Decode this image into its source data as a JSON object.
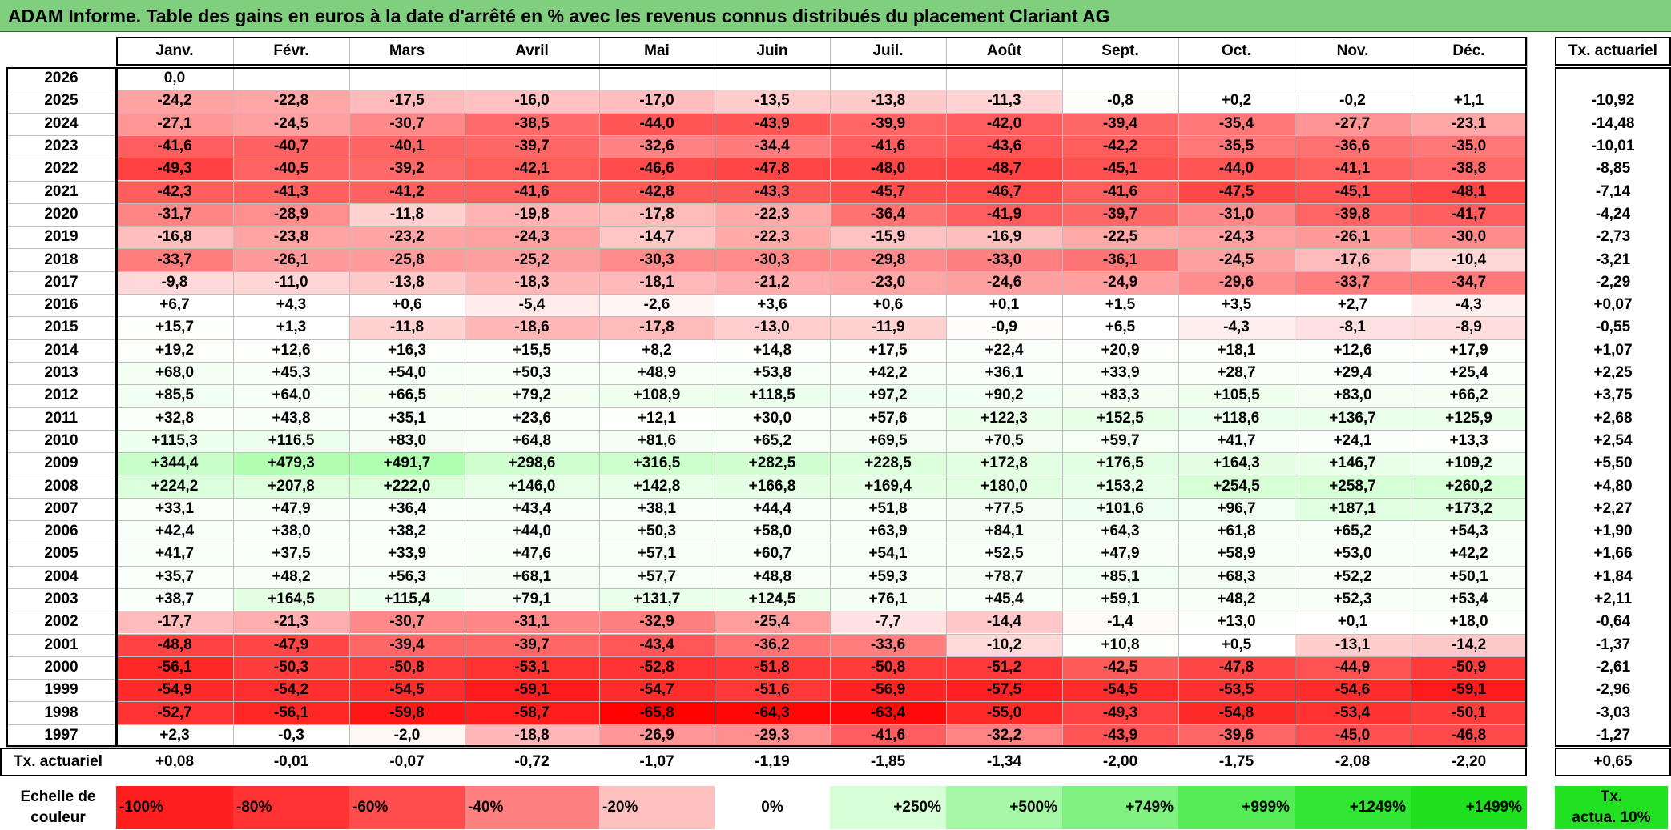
{
  "title": "ADAM Informe. Table des gains en euros à la date d'arrêté en % avec les revenus connus distribués du placement Clariant AG",
  "months": [
    "Janv.",
    "Févr.",
    "Mars",
    "Avril",
    "Mai",
    "Juin",
    "Juil.",
    "Août",
    "Sept.",
    "Oct.",
    "Nov.",
    "Déc."
  ],
  "rate_header": "Tx. actuariel",
  "rows": [
    {
      "year": "2026",
      "values": [
        "0,0",
        "",
        "",
        "",
        "",
        "",
        "",
        "",
        "",
        "",
        "",
        ""
      ],
      "rate": ""
    },
    {
      "year": "2025",
      "values": [
        "-24,2",
        "-22,8",
        "-17,5",
        "-16,0",
        "-17,0",
        "-13,5",
        "-13,8",
        "-11,3",
        "-0,8",
        "+0,2",
        "-0,2",
        "+1,1"
      ],
      "rate": "-10,92"
    },
    {
      "year": "2024",
      "values": [
        "-27,1",
        "-24,5",
        "-30,7",
        "-38,5",
        "-44,0",
        "-43,9",
        "-39,9",
        "-42,0",
        "-39,4",
        "-35,4",
        "-27,7",
        "-23,1"
      ],
      "rate": "-14,48"
    },
    {
      "year": "2023",
      "values": [
        "-41,6",
        "-40,7",
        "-40,1",
        "-39,7",
        "-32,6",
        "-34,4",
        "-41,6",
        "-43,6",
        "-42,2",
        "-35,5",
        "-36,6",
        "-35,0"
      ],
      "rate": "-10,01"
    },
    {
      "year": "2022",
      "values": [
        "-49,3",
        "-40,5",
        "-39,2",
        "-42,1",
        "-46,6",
        "-47,8",
        "-48,0",
        "-48,7",
        "-45,1",
        "-44,0",
        "-41,1",
        "-38,8"
      ],
      "rate": "-8,85"
    },
    {
      "year": "2021",
      "values": [
        "-42,3",
        "-41,3",
        "-41,2",
        "-41,6",
        "-42,8",
        "-43,3",
        "-45,7",
        "-46,7",
        "-41,6",
        "-47,5",
        "-45,1",
        "-48,1"
      ],
      "rate": "-7,14"
    },
    {
      "year": "2020",
      "values": [
        "-31,7",
        "-28,9",
        "-11,8",
        "-19,8",
        "-17,8",
        "-22,3",
        "-36,4",
        "-41,9",
        "-39,7",
        "-31,0",
        "-39,8",
        "-41,7"
      ],
      "rate": "-4,24"
    },
    {
      "year": "2019",
      "values": [
        "-16,8",
        "-23,8",
        "-23,2",
        "-24,3",
        "-14,7",
        "-22,3",
        "-15,9",
        "-16,9",
        "-22,5",
        "-24,3",
        "-26,1",
        "-30,0"
      ],
      "rate": "-2,73"
    },
    {
      "year": "2018",
      "values": [
        "-33,7",
        "-26,1",
        "-25,8",
        "-25,2",
        "-30,3",
        "-30,3",
        "-29,8",
        "-33,0",
        "-36,1",
        "-24,5",
        "-17,6",
        "-10,4"
      ],
      "rate": "-3,21"
    },
    {
      "year": "2017",
      "values": [
        "-9,8",
        "-11,0",
        "-13,8",
        "-18,3",
        "-18,1",
        "-21,2",
        "-23,0",
        "-24,6",
        "-24,9",
        "-29,6",
        "-33,7",
        "-34,7"
      ],
      "rate": "-2,29"
    },
    {
      "year": "2016",
      "values": [
        "+6,7",
        "+4,3",
        "+0,6",
        "-5,4",
        "-2,6",
        "+3,6",
        "+0,6",
        "+0,1",
        "+1,5",
        "+3,5",
        "+2,7",
        "-4,3"
      ],
      "rate": "+0,07"
    },
    {
      "year": "2015",
      "values": [
        "+15,7",
        "+1,3",
        "-11,8",
        "-18,6",
        "-17,8",
        "-13,0",
        "-11,9",
        "-0,9",
        "+6,5",
        "-4,3",
        "-8,1",
        "-8,9"
      ],
      "rate": "-0,55"
    },
    {
      "year": "2014",
      "values": [
        "+19,2",
        "+12,6",
        "+16,3",
        "+15,5",
        "+8,2",
        "+14,8",
        "+17,5",
        "+22,4",
        "+20,9",
        "+18,1",
        "+12,6",
        "+17,9"
      ],
      "rate": "+1,07"
    },
    {
      "year": "2013",
      "values": [
        "+68,0",
        "+45,3",
        "+54,0",
        "+50,3",
        "+48,9",
        "+53,8",
        "+42,2",
        "+36,1",
        "+33,9",
        "+28,7",
        "+29,4",
        "+25,4"
      ],
      "rate": "+2,25"
    },
    {
      "year": "2012",
      "values": [
        "+85,5",
        "+64,0",
        "+66,5",
        "+79,2",
        "+108,9",
        "+118,5",
        "+97,2",
        "+90,2",
        "+83,3",
        "+105,5",
        "+83,0",
        "+66,2"
      ],
      "rate": "+3,75"
    },
    {
      "year": "2011",
      "values": [
        "+32,8",
        "+43,8",
        "+35,1",
        "+23,6",
        "+12,1",
        "+30,0",
        "+57,6",
        "+122,3",
        "+152,5",
        "+118,6",
        "+136,7",
        "+125,9"
      ],
      "rate": "+2,68"
    },
    {
      "year": "2010",
      "values": [
        "+115,3",
        "+116,5",
        "+83,0",
        "+64,8",
        "+81,6",
        "+65,2",
        "+69,5",
        "+70,5",
        "+59,7",
        "+41,7",
        "+24,1",
        "+13,3"
      ],
      "rate": "+2,54"
    },
    {
      "year": "2009",
      "values": [
        "+344,4",
        "+479,3",
        "+491,7",
        "+298,6",
        "+316,5",
        "+282,5",
        "+228,5",
        "+172,8",
        "+176,5",
        "+164,3",
        "+146,7",
        "+109,2"
      ],
      "rate": "+5,50"
    },
    {
      "year": "2008",
      "values": [
        "+224,2",
        "+207,8",
        "+222,0",
        "+146,0",
        "+142,8",
        "+166,8",
        "+169,4",
        "+180,0",
        "+153,2",
        "+254,5",
        "+258,7",
        "+260,2"
      ],
      "rate": "+4,80"
    },
    {
      "year": "2007",
      "values": [
        "+33,1",
        "+47,9",
        "+36,4",
        "+43,4",
        "+38,1",
        "+44,4",
        "+51,8",
        "+77,5",
        "+101,6",
        "+96,7",
        "+187,1",
        "+173,2"
      ],
      "rate": "+2,27"
    },
    {
      "year": "2006",
      "values": [
        "+42,4",
        "+38,0",
        "+38,2",
        "+44,0",
        "+50,3",
        "+58,0",
        "+63,9",
        "+84,1",
        "+64,3",
        "+61,8",
        "+65,2",
        "+54,3"
      ],
      "rate": "+1,90"
    },
    {
      "year": "2005",
      "values": [
        "+41,7",
        "+37,5",
        "+33,9",
        "+47,6",
        "+57,1",
        "+60,7",
        "+54,1",
        "+52,5",
        "+47,9",
        "+58,9",
        "+53,0",
        "+42,2"
      ],
      "rate": "+1,66"
    },
    {
      "year": "2004",
      "values": [
        "+35,7",
        "+48,2",
        "+56,3",
        "+68,1",
        "+57,7",
        "+48,8",
        "+59,3",
        "+78,7",
        "+85,1",
        "+68,3",
        "+52,2",
        "+50,1"
      ],
      "rate": "+1,84"
    },
    {
      "year": "2003",
      "values": [
        "+38,7",
        "+164,5",
        "+115,4",
        "+79,1",
        "+131,7",
        "+124,5",
        "+76,1",
        "+45,4",
        "+59,1",
        "+48,2",
        "+52,3",
        "+53,4"
      ],
      "rate": "+2,11"
    },
    {
      "year": "2002",
      "values": [
        "-17,7",
        "-21,3",
        "-30,7",
        "-31,1",
        "-32,9",
        "-25,4",
        "-7,7",
        "-14,4",
        "-1,4",
        "+13,0",
        "+0,1",
        "+18,0"
      ],
      "rate": "-0,64"
    },
    {
      "year": "2001",
      "values": [
        "-48,8",
        "-47,9",
        "-39,4",
        "-39,7",
        "-43,4",
        "-36,2",
        "-33,6",
        "-10,2",
        "+10,8",
        "+0,5",
        "-13,1",
        "-14,2"
      ],
      "rate": "-1,37"
    },
    {
      "year": "2000",
      "values": [
        "-56,1",
        "-50,3",
        "-50,8",
        "-53,1",
        "-52,8",
        "-51,8",
        "-50,8",
        "-51,2",
        "-42,5",
        "-47,8",
        "-44,9",
        "-50,9"
      ],
      "rate": "-2,61"
    },
    {
      "year": "1999",
      "values": [
        "-54,9",
        "-54,2",
        "-54,5",
        "-59,1",
        "-54,7",
        "-51,6",
        "-56,9",
        "-57,5",
        "-54,5",
        "-53,5",
        "-54,6",
        "-59,1"
      ],
      "rate": "-2,96"
    },
    {
      "year": "1998",
      "values": [
        "-52,7",
        "-56,1",
        "-59,8",
        "-58,7",
        "-65,8",
        "-64,3",
        "-63,4",
        "-55,0",
        "-49,3",
        "-54,8",
        "-53,4",
        "-50,1"
      ],
      "rate": "-3,03"
    },
    {
      "year": "1997",
      "values": [
        "+2,3",
        "-0,3",
        "-2,0",
        "-18,8",
        "-26,9",
        "-29,3",
        "-41,6",
        "-32,2",
        "-43,9",
        "-39,6",
        "-45,0",
        "-46,8"
      ],
      "rate": "-1,27"
    }
  ],
  "summary": {
    "label": "Tx. actuariel",
    "values": [
      "+0,08",
      "-0,01",
      "-0,07",
      "-0,72",
      "-1,07",
      "-1,19",
      "-1,85",
      "-1,34",
      "-2,00",
      "-1,75",
      "-2,08",
      "-2,20"
    ],
    "total": "+0,65"
  },
  "legend": {
    "label_line1": "Echelle de",
    "label_line2": "couleur",
    "scale": [
      {
        "label": "-100%",
        "color": "#ff1f1f"
      },
      {
        "label": "-80%",
        "color": "#ff3333"
      },
      {
        "label": "-60%",
        "color": "#ff4d4d"
      },
      {
        "label": "-40%",
        "color": "#ff8080"
      },
      {
        "label": "-20%",
        "color": "#ffc0c0"
      },
      {
        "label": "0%",
        "color": "#ffffff"
      },
      {
        "label": "+250%",
        "color": "#d6ffd6"
      },
      {
        "label": "+500%",
        "color": "#a6f7a6"
      },
      {
        "label": "+749%",
        "color": "#80f080"
      },
      {
        "label": "+999%",
        "color": "#55ec55"
      },
      {
        "label": "+1249%",
        "color": "#33e633"
      },
      {
        "label": "+1499%",
        "color": "#1fdf1f"
      }
    ],
    "right_line1": "Tx.",
    "right_line2": "actua. 10%",
    "right_color": "#22e022"
  }
}
